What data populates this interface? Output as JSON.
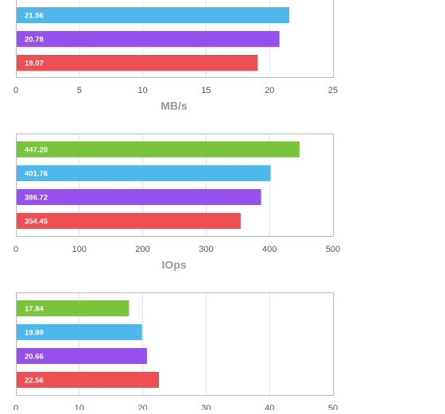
{
  "colors": {
    "green": "#78c43a",
    "blue": "#4db8ec",
    "purple": "#9650ed",
    "red": "#ee4f52",
    "frame": "#b8b8b8",
    "grid": "#e4e4e4"
  },
  "chart_data": [
    {
      "type": "bar",
      "orientation": "horizontal",
      "xlabel": "MB/s",
      "xlim": [
        0,
        25
      ],
      "ticks": [
        0,
        5,
        10,
        15,
        20,
        25
      ],
      "grid": true,
      "bars": [
        {
          "value": 21.56,
          "label": "21.56",
          "color": "blue"
        },
        {
          "value": 20.78,
          "label": "20.78",
          "color": "purple"
        },
        {
          "value": 19.07,
          "label": "19.07",
          "color": "red"
        }
      ]
    },
    {
      "type": "bar",
      "orientation": "horizontal",
      "xlabel": "IOps",
      "xlim": [
        0,
        500
      ],
      "ticks": [
        0,
        100,
        200,
        300,
        400,
        500
      ],
      "grid": true,
      "bars": [
        {
          "value": 447.2,
          "label": "447.20",
          "color": "green"
        },
        {
          "value": 401.76,
          "label": "401.76",
          "color": "blue"
        },
        {
          "value": 386.72,
          "label": "386.72",
          "color": "purple"
        },
        {
          "value": 354.45,
          "label": "354.45",
          "color": "red"
        }
      ]
    },
    {
      "type": "bar",
      "orientation": "horizontal",
      "xlabel": "",
      "xlim": [
        0,
        50
      ],
      "ticks": [
        0,
        10,
        20,
        30,
        40,
        50
      ],
      "grid": true,
      "bars": [
        {
          "value": 17.84,
          "label": "17.84",
          "color": "green"
        },
        {
          "value": 19.89,
          "label": "19.89",
          "color": "blue"
        },
        {
          "value": 20.66,
          "label": "20.66",
          "color": "purple"
        },
        {
          "value": 22.56,
          "label": "22.56",
          "color": "red"
        }
      ]
    }
  ]
}
